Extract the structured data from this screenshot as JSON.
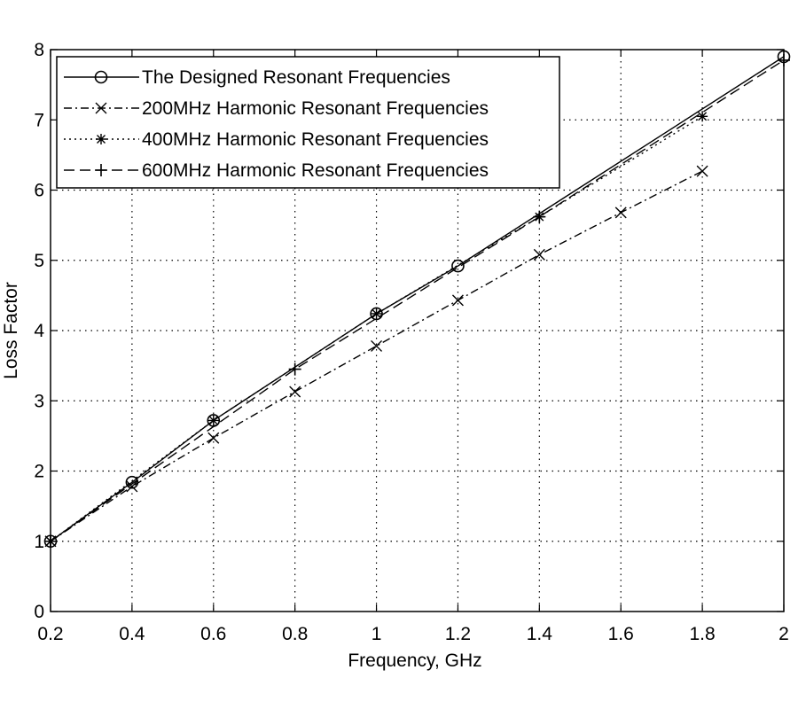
{
  "chart_data": {
    "type": "line",
    "title": "",
    "xlabel": "Frequency, GHz",
    "ylabel": "Loss Factor",
    "xlim": [
      0.2,
      2
    ],
    "ylim": [
      0,
      8
    ],
    "grid": true,
    "legend_position": "top-left",
    "x_ticks": [
      "0.2",
      "0.4",
      "0.6",
      "0.8",
      "1",
      "1.2",
      "1.4",
      "1.6",
      "1.8",
      "2"
    ],
    "y_ticks": [
      "0",
      "1",
      "2",
      "3",
      "4",
      "5",
      "6",
      "7",
      "8"
    ],
    "series": [
      {
        "name": "The Designed Resonant Frequencies",
        "line_style": "solid",
        "marker": "circle",
        "x": [
          0.2,
          0.4,
          0.6,
          1.0,
          1.2,
          2.0
        ],
        "y": [
          1.0,
          1.84,
          2.72,
          4.24,
          4.92,
          7.9
        ]
      },
      {
        "name": "200MHz Harmonic Resonant Frequencies",
        "line_style": "dashdot",
        "marker": "x",
        "x": [
          0.2,
          0.4,
          0.6,
          0.8,
          1.0,
          1.2,
          1.4,
          1.6,
          1.8
        ],
        "y": [
          1.0,
          1.78,
          2.47,
          3.13,
          3.78,
          4.43,
          5.08,
          5.68,
          6.27
        ]
      },
      {
        "name": "400MHz Harmonic Resonant Frequencies",
        "line_style": "dotted",
        "marker": "star",
        "x": [
          0.2,
          0.6,
          1.0,
          1.4,
          1.8
        ],
        "y": [
          1.0,
          2.72,
          4.24,
          5.62,
          7.05
        ]
      },
      {
        "name": "600MHz Harmonic Resonant Frequencies",
        "line_style": "dashed",
        "marker": "plus",
        "x": [
          0.2,
          0.8,
          1.4,
          2.0
        ],
        "y": [
          1.0,
          3.45,
          5.62,
          7.85
        ]
      }
    ]
  }
}
